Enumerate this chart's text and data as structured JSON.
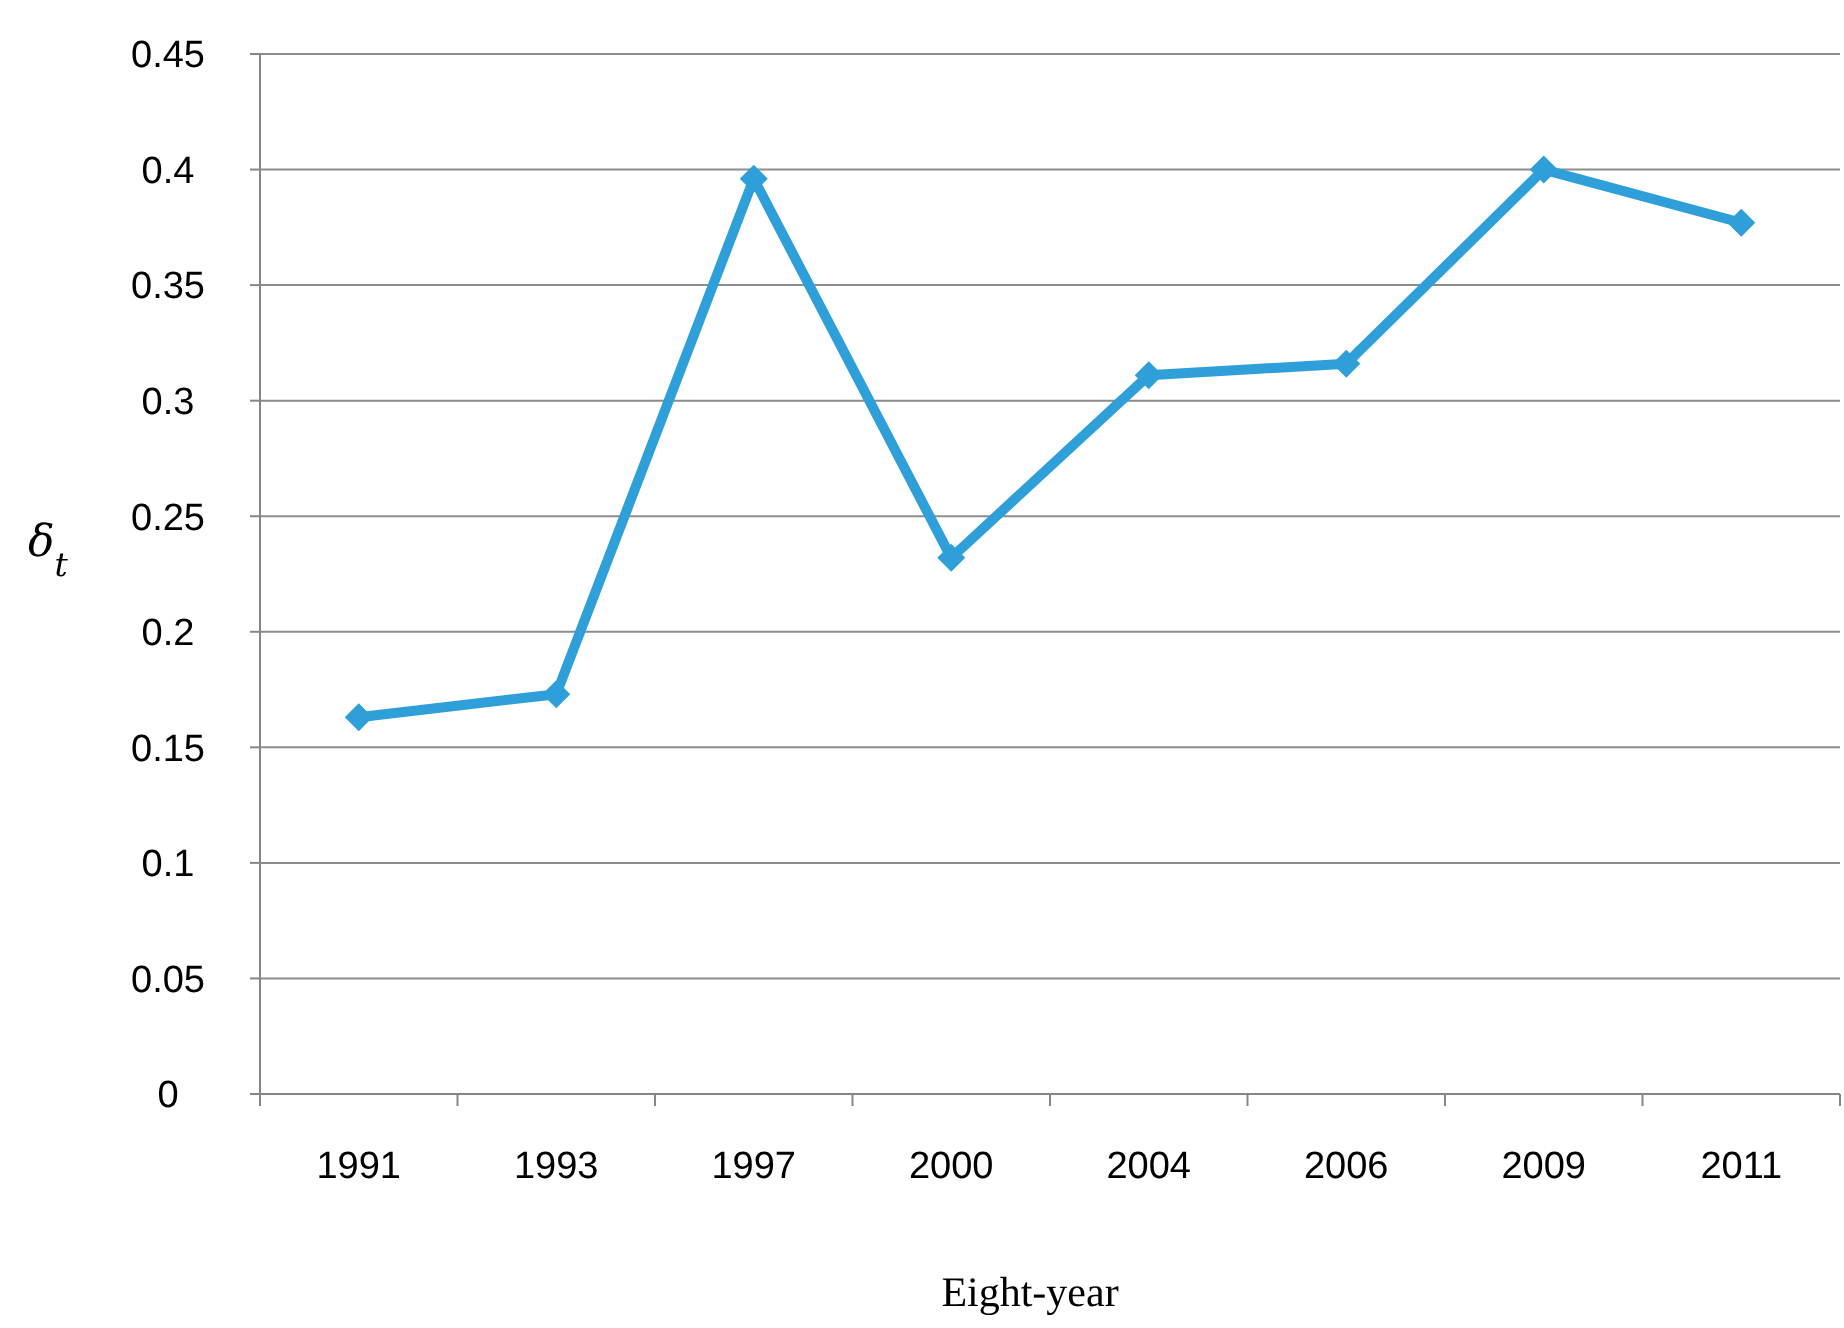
{
  "chart_data": {
    "type": "line",
    "xlabel": "Eight-year",
    "ylabel": "δ$_{t}$",
    "categories": [
      "1991",
      "1993",
      "1997",
      "2000",
      "2004",
      "2006",
      "2009",
      "2011"
    ],
    "series": [
      {
        "color": "#2e9fd9",
        "values": [
          0.163,
          0.173,
          0.396,
          0.232,
          0.311,
          0.316,
          0.4,
          0.377
        ]
      }
    ],
    "ylim": [
      0,
      0.45
    ],
    "yticks": [
      0,
      0.05,
      0.1,
      0.15,
      0.2,
      0.25,
      0.3,
      0.35,
      0.4,
      0.45
    ],
    "grid": "y",
    "marker": "diamond",
    "line_style": "solid"
  }
}
